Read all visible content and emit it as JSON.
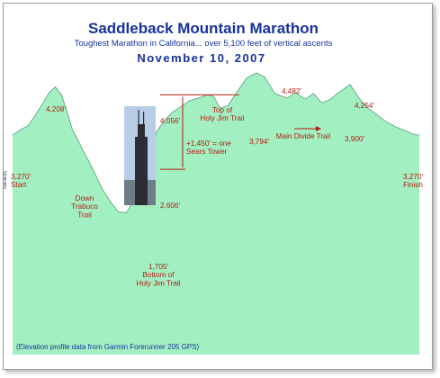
{
  "colors": {
    "fill": "#a2f0c2",
    "stroke": "#5c9c78",
    "label": "#b51a10",
    "title": "#17339b",
    "sky": "#b9cde6",
    "tower": "#2b2d33"
  },
  "icons": {
    "tower_photo": "sears-tower-photo"
  },
  "chart_data": {
    "type": "area",
    "title": "Saddleback Mountain Marathon",
    "subtitle": "Toughest Marathon in California... over 5,100 feet of vertical ascents",
    "date": "November 10, 2007",
    "ylabel": "Altitude(ft)",
    "xlabel": "",
    "ylim": [
      -1000,
      5200
    ],
    "xlim": [
      0,
      100
    ],
    "grid": false,
    "legend": "none",
    "source_note": "(Elevation profile data from Garmin Forerunner 205 GPS)",
    "x": [
      0,
      2,
      3.8,
      5.5,
      7.5,
      9,
      10.5,
      12,
      13,
      13.8,
      14.6,
      16,
      17.5,
      19,
      20.5,
      22,
      24,
      26,
      28,
      30,
      32,
      34,
      35.5,
      37.5,
      39.5,
      41.5,
      43.5,
      46,
      48,
      49.5,
      51,
      53,
      55.5,
      57.5,
      60,
      62,
      64.5,
      67.5,
      69.5,
      72,
      74,
      76,
      78,
      80,
      83,
      85,
      87,
      89,
      91.5,
      94,
      96.5,
      98.5,
      100
    ],
    "values": [
      3270,
      3380,
      3450,
      3650,
      3900,
      4100,
      4208,
      4060,
      3820,
      3620,
      3400,
      3180,
      2950,
      2720,
      2480,
      2230,
      1980,
      1780,
      1760,
      2050,
      2500,
      2980,
      3350,
      3570,
      3730,
      3830,
      3940,
      4000,
      4056,
      4020,
      3794,
      3850,
      4150,
      4380,
      4482,
      4400,
      4080,
      3990,
      4100,
      3970,
      4080,
      3900,
      3960,
      4090,
      4254,
      4010,
      3820,
      3700,
      3550,
      3440,
      3360,
      3290,
      3270
    ],
    "annotations": [
      {
        "name": "start",
        "text": [
          "3,270'",
          "Start"
        ],
        "x": 0,
        "y": 3270
      },
      {
        "name": "peak-1",
        "text": [
          "4,208'"
        ],
        "x": 10.5,
        "y": 4208
      },
      {
        "name": "down-trabuco",
        "text": [
          "Down",
          "Trabuco",
          "Trail"
        ],
        "x": 13.8,
        "y": 2550
      },
      {
        "name": "bottom-holy-jim",
        "text": [
          "1,705'",
          "Bottom of",
          "Holy Jim Trail"
        ],
        "x": 27,
        "y": 1705
      },
      {
        "name": "tower-top",
        "text": [
          "4,056'"
        ],
        "x": 32,
        "y": 4056
      },
      {
        "name": "tower-bottom",
        "text": [
          "2,606'"
        ],
        "x": 32,
        "y": 2606
      },
      {
        "name": "tower-height",
        "text": [
          "+1,450' = one",
          "Sears Tower"
        ],
        "x": 34,
        "y": 3330
      },
      {
        "name": "top-holy-jim",
        "text": [
          "Top of",
          "Holy Jim Trail"
        ],
        "x": 50,
        "y": 4056
      },
      {
        "name": "trough-1",
        "text": [
          "3,794'"
        ],
        "x": 51,
        "y": 3794
      },
      {
        "name": "peak-2",
        "text": [
          "4,482'"
        ],
        "x": 60,
        "y": 4482
      },
      {
        "name": "main-divide",
        "text": [
          "Main Divide Trail"
        ],
        "x": 72,
        "y": 3850
      },
      {
        "name": "trough-2",
        "text": [
          "3,900'"
        ],
        "x": 76,
        "y": 3900
      },
      {
        "name": "peak-3",
        "text": [
          "4,254'"
        ],
        "x": 83,
        "y": 4254
      },
      {
        "name": "finish",
        "text": [
          "3,270'",
          "Finish"
        ],
        "x": 100,
        "y": 3270
      }
    ]
  }
}
